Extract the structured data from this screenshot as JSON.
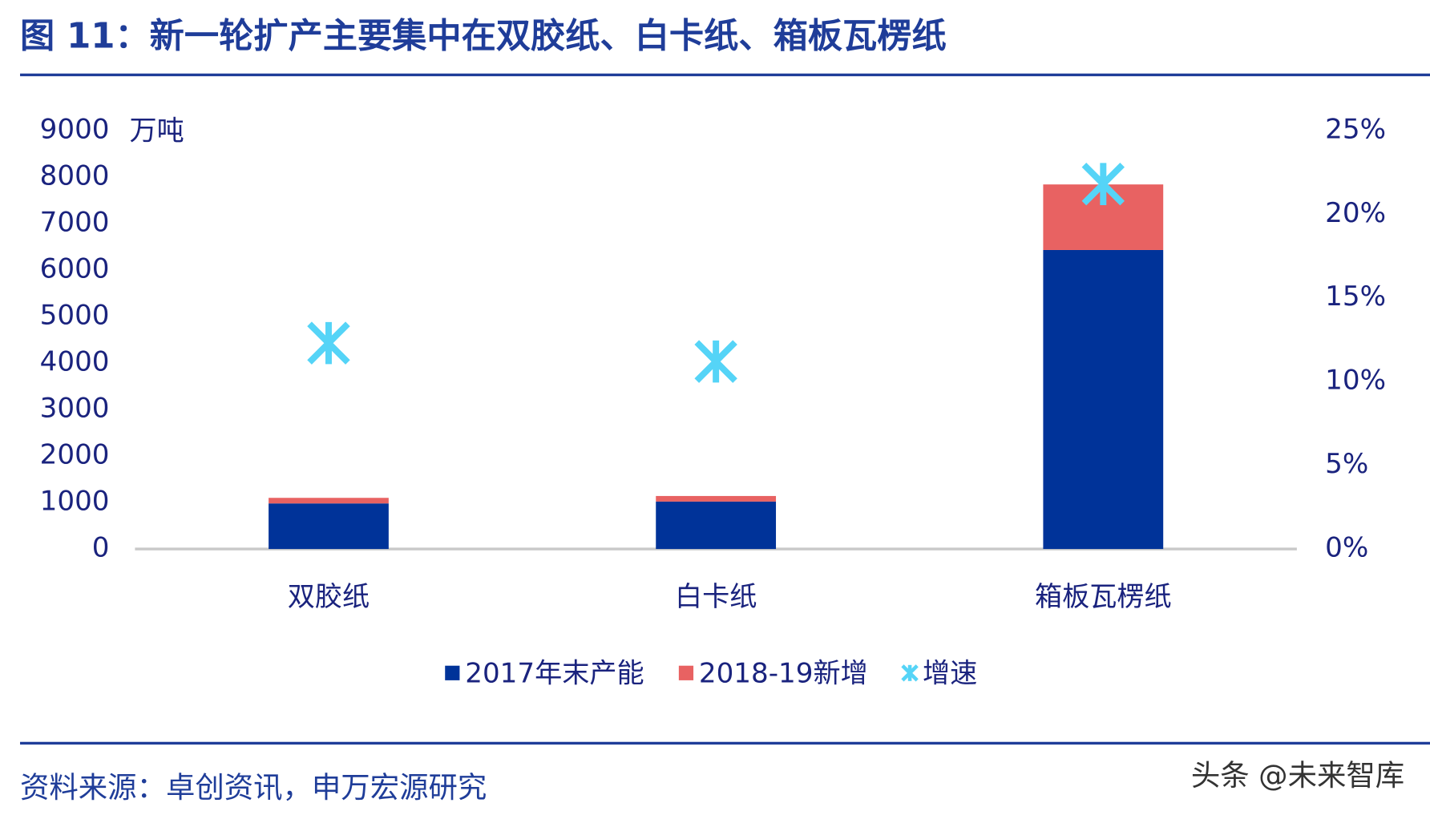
{
  "chart_data": {
    "type": "bar",
    "stacked": true,
    "title": "图 11：新一轮扩产主要集中在双胶纸、白卡纸、箱板瓦楞纸",
    "y_label": "万吨",
    "categories": [
      "双胶纸",
      "白卡纸",
      "箱板瓦楞纸"
    ],
    "series": [
      {
        "name": "2017年末产能",
        "color": "#003399",
        "values": [
          980,
          1020,
          6430
        ]
      },
      {
        "name": "2018-19新增",
        "color": "#e86262",
        "values": [
          120,
          120,
          1410
        ]
      },
      {
        "name": "增速",
        "color": "#55d4f7",
        "type": "scatter",
        "axis": "y2",
        "values": [
          12.3,
          11.2,
          21.8
        ]
      }
    ],
    "ylim": [
      0,
      9000
    ],
    "yticks": [
      0,
      1000,
      2000,
      3000,
      4000,
      5000,
      6000,
      7000,
      8000,
      9000
    ],
    "y2lim": [
      0,
      25
    ],
    "y2ticks": [
      {
        "value": 0,
        "label": "0%"
      },
      {
        "value": 5,
        "label": "5%"
      },
      {
        "value": 10,
        "label": "10%"
      },
      {
        "value": 15,
        "label": "15%"
      },
      {
        "value": 20,
        "label": "20%"
      },
      {
        "value": 25,
        "label": "25%"
      }
    ],
    "grid": false
  },
  "source": "资料来源：卓创资讯，申万宏源研究",
  "watermark": "头条 @未来智库"
}
